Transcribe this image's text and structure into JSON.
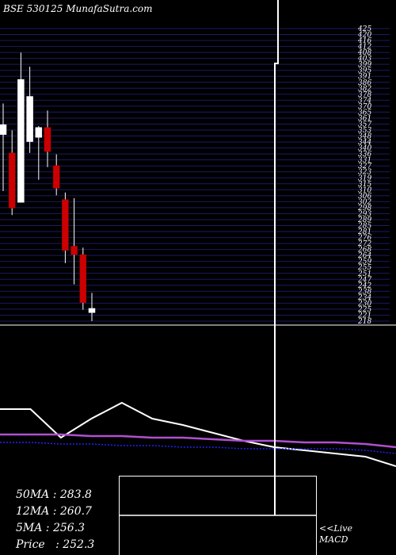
{
  "header": {
    "title": "BSE 530125 MunafaSutra.com"
  },
  "stats": {
    "ma50": "50MA : 283.8",
    "ma12": "12MA : 260.7",
    "ma5": "5MA : 256.3",
    "price": "Price   : 252.3"
  },
  "macd_note": {
    "line1": "<<Live",
    "line2": "MACD"
  },
  "colors": {
    "background": "#000000",
    "up": "#ffffff",
    "down": "#cc0000",
    "grid": "#1a1a66",
    "ma_purple": "#b050d0",
    "ma_blue": "#2222ff"
  },
  "chart_data": [
    {
      "type": "candlestick",
      "title": "BSE 530125 MunafaSutra.com",
      "ylim": [
        218,
        425
      ],
      "yticks": [
        "425",
        "420",
        "416",
        "412",
        "408",
        "403",
        "399",
        "395",
        "391",
        "386",
        "382",
        "378",
        "374",
        "370",
        "365",
        "361",
        "357",
        "353",
        "348",
        "344",
        "340",
        "336",
        "331",
        "327",
        "323",
        "319",
        "315",
        "310",
        "306",
        "302",
        "298",
        "293",
        "289",
        "285",
        "281",
        "276",
        "272",
        "268",
        "264",
        "259",
        "255",
        "251",
        "247",
        "242",
        "238",
        "234",
        "230",
        "225",
        "221",
        "218"
      ],
      "candles": [
        {
          "open": 350,
          "high": 372,
          "low": 310,
          "close": 357,
          "dir": "up"
        },
        {
          "open": 337,
          "high": 353,
          "low": 293,
          "close": 298,
          "dir": "down"
        },
        {
          "open": 302,
          "high": 408,
          "low": 302,
          "close": 389,
          "dir": "up"
        },
        {
          "open": 345,
          "high": 398,
          "low": 337,
          "close": 377,
          "dir": "up"
        },
        {
          "open": 348,
          "high": 356,
          "low": 318,
          "close": 355,
          "dir": "up"
        },
        {
          "open": 355,
          "high": 367,
          "low": 327,
          "close": 338,
          "dir": "down"
        },
        {
          "open": 328,
          "high": 336,
          "low": 307,
          "close": 312,
          "dir": "down"
        },
        {
          "open": 304,
          "high": 309,
          "low": 259,
          "close": 268,
          "dir": "down"
        },
        {
          "open": 271,
          "high": 305,
          "low": 244,
          "close": 265,
          "dir": "down"
        },
        {
          "open": 265,
          "high": 270,
          "low": 226,
          "close": 231,
          "dir": "down"
        },
        {
          "open": 224,
          "high": 238,
          "low": 218,
          "close": 227,
          "dir": "up"
        }
      ]
    },
    {
      "type": "line",
      "series": [
        {
          "values": [
            262,
            262,
            244,
            256,
            266,
            256,
            252,
            247,
            242,
            238,
            236,
            234,
            232,
            226
          ]
        },
        {
          "values": [
            246,
            246,
            246,
            245,
            245,
            244,
            244,
            243,
            242,
            242,
            241,
            241,
            240,
            238
          ]
        },
        {
          "values": [
            241,
            241,
            240,
            240,
            239,
            239,
            238,
            238,
            237,
            237,
            237,
            237,
            236,
            234
          ]
        }
      ]
    }
  ]
}
